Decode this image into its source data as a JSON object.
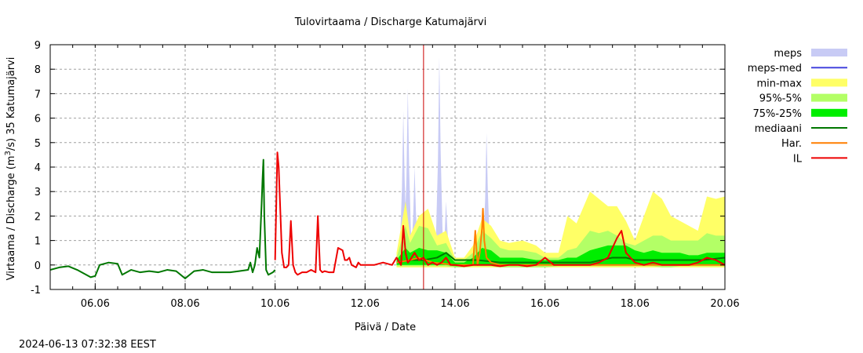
{
  "title": "Tulovirtaama / Discharge  Katumajärvi",
  "ylabel": "Virtaama / Discharge (m³/s)  35 Katumajärvi",
  "xlabel": "Päivä / Date",
  "timestamp": "2024-06-13 07:32:38 EEST",
  "legend": [
    {
      "label": "meps",
      "type": "band",
      "color": "#c8cbf5"
    },
    {
      "label": "meps-med",
      "type": "line",
      "color": "#4444dd"
    },
    {
      "label": "min-max",
      "type": "band",
      "color": "#ffff66"
    },
    {
      "label": "95%-5%",
      "type": "band",
      "color": "#b3ff66"
    },
    {
      "label": "75%-25%",
      "type": "band",
      "color": "#00ee00"
    },
    {
      "label": "mediaani",
      "type": "line",
      "color": "#007700"
    },
    {
      "label": "Har.",
      "type": "line",
      "color": "#ff7f00"
    },
    {
      "label": "IL",
      "type": "line",
      "color": "#ee0000"
    }
  ],
  "chart_data": {
    "type": "line",
    "title": "Tulovirtaama / Discharge  Katumajärvi",
    "xlabel": "Päivä / Date",
    "ylabel": "Virtaama / Discharge (m3/s)  35 Katumajärvi",
    "xlim_days": [
      5.0,
      20.0
    ],
    "ylim": [
      -1,
      9
    ],
    "yticks": [
      -1,
      0,
      1,
      2,
      3,
      4,
      5,
      6,
      7,
      8,
      9
    ],
    "xticks": [
      "06.06",
      "08.06",
      "10.06",
      "12.06",
      "14.06",
      "16.06",
      "18.06",
      "20.06"
    ],
    "xtick_days": [
      6,
      8,
      10,
      12,
      14,
      16,
      18,
      20
    ],
    "grid": true,
    "now_line_day": 13.3,
    "legend_position": "right",
    "series": [
      {
        "name": "observed (green, historical)",
        "color": "#007700",
        "x": [
          5.0,
          5.2,
          5.4,
          5.6,
          5.7,
          5.9,
          6.0,
          6.1,
          6.3,
          6.5,
          6.6,
          6.8,
          7.0,
          7.2,
          7.4,
          7.6,
          7.8,
          8.0,
          8.2,
          8.4,
          8.6,
          8.8,
          9.0,
          9.2,
          9.4,
          9.45,
          9.5,
          9.55,
          9.6,
          9.65,
          9.7,
          9.72,
          9.74,
          9.76,
          9.8,
          9.85,
          9.9,
          9.95,
          10.0
        ],
        "y": [
          -0.2,
          -0.1,
          -0.05,
          -0.2,
          -0.3,
          -0.5,
          -0.45,
          0.0,
          0.1,
          0.05,
          -0.4,
          -0.2,
          -0.3,
          -0.25,
          -0.3,
          -0.2,
          -0.25,
          -0.55,
          -0.25,
          -0.2,
          -0.3,
          -0.3,
          -0.3,
          -0.25,
          -0.2,
          0.1,
          -0.3,
          0.0,
          0.7,
          0.3,
          2.5,
          3.5,
          4.3,
          2.0,
          -0.2,
          -0.4,
          -0.35,
          -0.3,
          -0.2
        ]
      },
      {
        "name": "IL",
        "color": "#ee0000",
        "x": [
          10.0,
          10.05,
          10.08,
          10.12,
          10.15,
          10.2,
          10.25,
          10.3,
          10.35,
          10.4,
          10.45,
          10.5,
          10.6,
          10.7,
          10.8,
          10.9,
          10.95,
          11.0,
          11.05,
          11.1,
          11.2,
          11.3,
          11.4,
          11.5,
          11.55,
          11.6,
          11.65,
          11.7,
          11.8,
          11.85,
          11.9,
          12.0,
          12.2,
          12.4,
          12.6,
          12.7,
          12.8,
          12.85,
          12.9,
          12.95,
          13.0,
          13.1,
          13.2,
          13.3,
          13.4,
          13.5,
          13.6,
          13.7,
          13.8,
          13.9,
          14.0,
          14.2,
          14.4,
          14.6,
          14.8,
          15.0,
          15.2,
          15.4,
          15.6,
          15.8,
          16.0,
          16.2,
          16.4,
          16.6,
          16.8,
          17.0,
          17.2,
          17.4,
          17.6,
          17.7,
          17.8,
          18.0,
          18.2,
          18.4,
          18.6,
          18.8,
          19.0,
          19.2,
          19.4,
          19.6,
          19.8,
          20.0
        ],
        "y": [
          0.2,
          4.6,
          4.0,
          2.0,
          0.5,
          -0.1,
          -0.1,
          0.0,
          1.8,
          0.0,
          -0.3,
          -0.4,
          -0.3,
          -0.3,
          -0.2,
          -0.3,
          2.0,
          -0.2,
          -0.3,
          -0.25,
          -0.3,
          -0.3,
          0.7,
          0.6,
          0.2,
          0.2,
          0.3,
          0.0,
          -0.1,
          0.1,
          0.0,
          0.0,
          0.0,
          0.1,
          0.0,
          0.3,
          0.0,
          1.6,
          0.5,
          0.1,
          0.2,
          0.5,
          0.2,
          0.3,
          0.0,
          0.1,
          0.0,
          0.1,
          0.3,
          0.0,
          0.0,
          -0.05,
          0.0,
          0.0,
          0.0,
          -0.05,
          0.0,
          0.0,
          -0.05,
          0.0,
          0.3,
          0.0,
          0.0,
          0.0,
          0.0,
          0.0,
          0.1,
          0.3,
          1.1,
          1.4,
          0.5,
          0.1,
          0.0,
          0.1,
          0.0,
          0.0,
          0.0,
          0.0,
          0.1,
          0.3,
          0.2,
          0.0
        ]
      },
      {
        "name": "mediaani",
        "color": "#007700",
        "x": [
          12.7,
          13.0,
          13.3,
          13.6,
          13.8,
          14.0,
          14.5,
          15.0,
          15.5,
          16.0,
          16.5,
          17.0,
          17.5,
          17.8,
          18.0,
          18.5,
          19.0,
          19.5,
          20.0
        ],
        "y": [
          0.1,
          0.2,
          0.2,
          0.3,
          0.5,
          0.2,
          0.2,
          0.1,
          0.1,
          0.1,
          0.1,
          0.1,
          0.3,
          0.3,
          0.2,
          0.2,
          0.2,
          0.2,
          0.3
        ]
      },
      {
        "name": "Har.",
        "color": "#ff7f00",
        "x": [
          12.7,
          13.0,
          13.2,
          13.5,
          14.0,
          14.3,
          14.4,
          14.45,
          14.5,
          14.55,
          14.6,
          14.62,
          14.65,
          14.7,
          14.8,
          15.0,
          16.0,
          17.0,
          18.0,
          19.0,
          20.0
        ],
        "y": [
          0.1,
          0.2,
          0.3,
          0.1,
          0.0,
          0.0,
          0.0,
          1.4,
          0.0,
          0.5,
          1.5,
          2.3,
          1.0,
          0.3,
          0.1,
          0.0,
          0.0,
          0.0,
          0.0,
          0.0,
          0.0
        ]
      }
    ],
    "bands": [
      {
        "name": "meps",
        "color": "#c8cbf5",
        "peaks": [
          {
            "x": 12.85,
            "y": 6.3
          },
          {
            "x": 12.95,
            "y": 7.2
          },
          {
            "x": 13.1,
            "y": 4.0
          },
          {
            "x": 13.65,
            "y": 8.5
          },
          {
            "x": 13.8,
            "y": 2.6
          },
          {
            "x": 14.7,
            "y": 5.4
          }
        ]
      },
      {
        "name": "min-max",
        "color": "#ffff66",
        "x": [
          12.7,
          12.9,
          13.0,
          13.2,
          13.4,
          13.6,
          13.8,
          14.0,
          14.2,
          14.4,
          14.6,
          14.8,
          15.0,
          15.2,
          15.5,
          15.8,
          16.0,
          16.3,
          16.5,
          16.7,
          17.0,
          17.2,
          17.4,
          17.6,
          17.8,
          18.0,
          18.2,
          18.4,
          18.6,
          18.8,
          19.0,
          19.2,
          19.4,
          19.6,
          19.8,
          20.0
        ],
        "ymax": [
          0.5,
          2.6,
          1.2,
          2.0,
          2.3,
          1.2,
          1.4,
          0.3,
          0.3,
          0.8,
          1.9,
          1.6,
          1.0,
          0.9,
          1.0,
          0.8,
          0.5,
          0.5,
          2.0,
          1.7,
          3.0,
          2.7,
          2.4,
          2.4,
          1.8,
          1.0,
          2.0,
          3.0,
          2.7,
          2.0,
          1.8,
          1.6,
          1.4,
          2.8,
          2.7,
          2.8
        ],
        "ymin": [
          -0.1,
          -0.1,
          -0.1,
          -0.1,
          -0.1,
          -0.1,
          -0.1,
          -0.1,
          -0.1,
          -0.1,
          -0.1,
          -0.1,
          -0.1,
          -0.1,
          -0.1,
          -0.1,
          -0.1,
          -0.1,
          -0.1,
          -0.1,
          -0.1,
          -0.1,
          -0.1,
          -0.1,
          -0.1,
          -0.1,
          -0.1,
          -0.1,
          -0.1,
          -0.1,
          -0.1,
          -0.1,
          -0.1,
          -0.1,
          -0.1,
          -0.1
        ]
      },
      {
        "name": "95%-5%",
        "color": "#b3ff66",
        "x": [
          12.7,
          12.9,
          13.0,
          13.2,
          13.4,
          13.6,
          13.8,
          14.0,
          14.2,
          14.4,
          14.6,
          14.8,
          15.0,
          15.2,
          15.5,
          15.8,
          16.0,
          16.3,
          16.5,
          16.7,
          17.0,
          17.2,
          17.4,
          17.6,
          17.8,
          18.0,
          18.2,
          18.4,
          18.6,
          18.8,
          19.0,
          19.2,
          19.4,
          19.6,
          19.8,
          20.0
        ],
        "ymax": [
          0.3,
          1.6,
          0.9,
          1.6,
          1.5,
          0.8,
          0.9,
          0.2,
          0.2,
          0.5,
          1.4,
          1.1,
          0.7,
          0.6,
          0.6,
          0.5,
          0.3,
          0.3,
          0.6,
          0.7,
          1.4,
          1.3,
          1.4,
          1.2,
          0.9,
          0.8,
          1.0,
          1.2,
          1.2,
          1.0,
          1.0,
          1.0,
          1.0,
          1.3,
          1.2,
          1.2
        ],
        "ymin": [
          -0.05,
          -0.05,
          -0.05,
          -0.05,
          -0.05,
          -0.05,
          -0.05,
          -0.1,
          -0.1,
          -0.05,
          -0.05,
          -0.05,
          -0.1,
          -0.1,
          -0.1,
          -0.1,
          -0.1,
          -0.05,
          -0.05,
          -0.05,
          -0.05,
          -0.05,
          -0.05,
          -0.05,
          -0.05,
          -0.05,
          -0.05,
          -0.05,
          -0.1,
          -0.1,
          -0.05,
          -0.05,
          -0.05,
          -0.05,
          -0.05,
          -0.05
        ]
      },
      {
        "name": "75%-25%",
        "color": "#00ee00",
        "x": [
          12.7,
          12.9,
          13.0,
          13.2,
          13.4,
          13.6,
          13.8,
          14.0,
          14.2,
          14.4,
          14.6,
          14.8,
          15.0,
          15.2,
          15.5,
          15.8,
          16.0,
          16.3,
          16.5,
          16.7,
          17.0,
          17.2,
          17.4,
          17.6,
          17.8,
          18.0,
          18.2,
          18.4,
          18.6,
          18.8,
          19.0,
          19.2,
          19.4,
          19.6,
          19.8,
          20.0
        ],
        "ymax": [
          0.2,
          0.7,
          0.5,
          0.7,
          0.6,
          0.6,
          0.5,
          0.1,
          0.1,
          0.3,
          0.7,
          0.6,
          0.3,
          0.3,
          0.3,
          0.2,
          0.2,
          0.2,
          0.3,
          0.3,
          0.6,
          0.7,
          0.8,
          0.8,
          0.8,
          0.6,
          0.5,
          0.6,
          0.5,
          0.5,
          0.5,
          0.4,
          0.4,
          0.5,
          0.5,
          0.5
        ],
        "ymin": [
          0.0,
          0.0,
          0.0,
          0.0,
          0.0,
          0.0,
          0.0,
          -0.05,
          -0.05,
          0.0,
          0.0,
          0.0,
          0.0,
          0.0,
          0.0,
          0.0,
          0.0,
          0.0,
          0.0,
          0.0,
          0.0,
          0.0,
          0.0,
          0.0,
          0.0,
          0.0,
          0.0,
          0.0,
          0.0,
          0.0,
          0.0,
          0.0,
          0.0,
          0.0,
          0.0,
          0.0
        ]
      }
    ]
  }
}
